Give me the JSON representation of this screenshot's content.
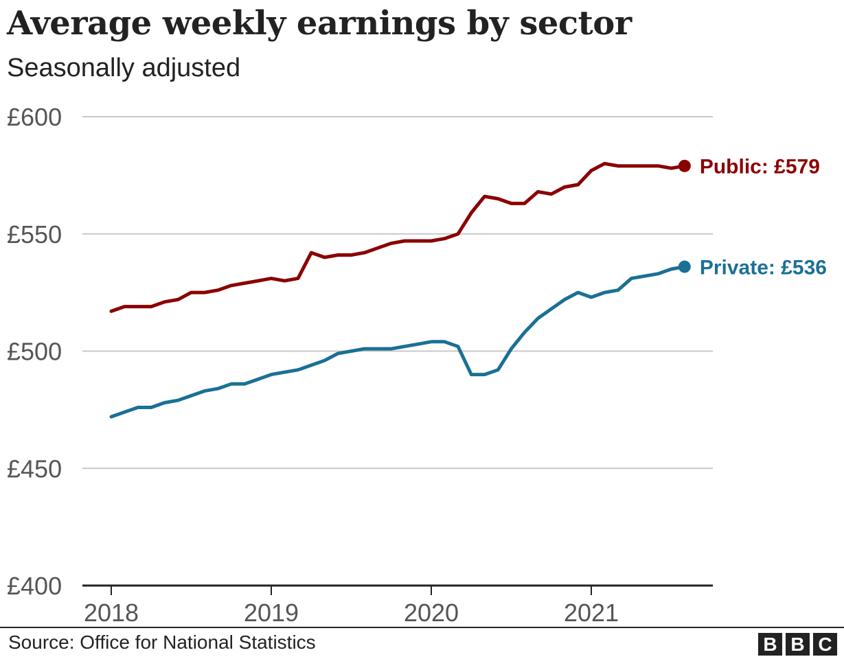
{
  "chart_data": {
    "type": "line",
    "title": "Average weekly earnings by sector",
    "subtitle": "Seasonally adjusted",
    "xlabel": "",
    "ylabel": "",
    "xlim": [
      2018,
      2021.75
    ],
    "ylim": [
      400,
      600
    ],
    "y_ticks": [
      600,
      550,
      500,
      450,
      400
    ],
    "y_tick_labels": [
      "£600",
      "£550",
      "£500",
      "£450",
      "£400"
    ],
    "x_ticks": [
      2018,
      2019,
      2020,
      2021
    ],
    "x_tick_labels": [
      "2018",
      "2019",
      "2020",
      "2021"
    ],
    "grid": "horizontal",
    "legend": "direct labels at line ends",
    "series": [
      {
        "name": "Public",
        "color": "#8b0000",
        "end_label": "Public: £579",
        "x": [
          2018.0,
          2018.083,
          2018.167,
          2018.25,
          2018.333,
          2018.417,
          2018.5,
          2018.583,
          2018.667,
          2018.75,
          2018.833,
          2018.917,
          2019.0,
          2019.083,
          2019.167,
          2019.25,
          2019.333,
          2019.417,
          2019.5,
          2019.583,
          2019.667,
          2019.75,
          2019.833,
          2019.917,
          2020.0,
          2020.083,
          2020.167,
          2020.25,
          2020.333,
          2020.417,
          2020.5,
          2020.583,
          2020.667,
          2020.75,
          2020.833,
          2020.917,
          2021.0,
          2021.083,
          2021.167,
          2021.25,
          2021.333,
          2021.417,
          2021.5,
          2021.583
        ],
        "values": [
          517,
          519,
          519,
          519,
          521,
          522,
          525,
          525,
          526,
          528,
          529,
          530,
          531,
          530,
          531,
          542,
          540,
          541,
          541,
          542,
          544,
          546,
          547,
          547,
          547,
          548,
          550,
          559,
          566,
          565,
          563,
          563,
          568,
          567,
          570,
          571,
          577,
          580,
          579,
          579,
          579,
          579,
          578,
          579
        ]
      },
      {
        "name": "Private",
        "color": "#1a7095",
        "end_label": "Private: £536",
        "x": [
          2018.0,
          2018.083,
          2018.167,
          2018.25,
          2018.333,
          2018.417,
          2018.5,
          2018.583,
          2018.667,
          2018.75,
          2018.833,
          2018.917,
          2019.0,
          2019.083,
          2019.167,
          2019.25,
          2019.333,
          2019.417,
          2019.5,
          2019.583,
          2019.667,
          2019.75,
          2019.833,
          2019.917,
          2020.0,
          2020.083,
          2020.167,
          2020.25,
          2020.333,
          2020.417,
          2020.5,
          2020.583,
          2020.667,
          2020.75,
          2020.833,
          2020.917,
          2021.0,
          2021.083,
          2021.167,
          2021.25,
          2021.333,
          2021.417,
          2021.5,
          2021.583
        ],
        "values": [
          472,
          474,
          476,
          476,
          478,
          479,
          481,
          483,
          484,
          486,
          486,
          488,
          490,
          491,
          492,
          494,
          496,
          499,
          500,
          501,
          501,
          501,
          502,
          503,
          504,
          504,
          502,
          490,
          490,
          492,
          501,
          508,
          514,
          518,
          522,
          525,
          523,
          525,
          526,
          531,
          532,
          533,
          535,
          536
        ]
      }
    ]
  },
  "footer": {
    "source": "Source: Office for National Statistics",
    "logo_letters": [
      "B",
      "B",
      "C"
    ]
  }
}
